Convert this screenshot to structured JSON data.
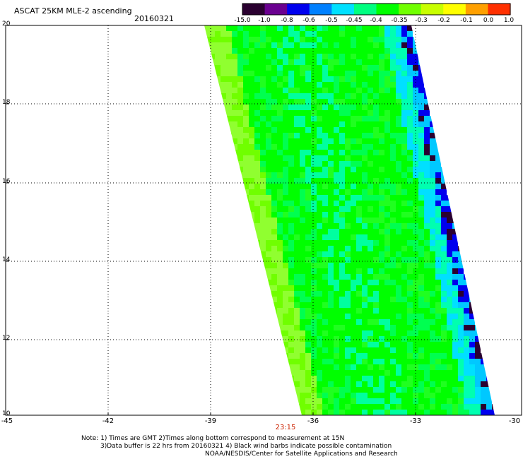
{
  "header": {
    "title": "ASCAT 25KM MLE-2 ascending",
    "date": "20160321"
  },
  "colorbar": {
    "labels": [
      "-15.0",
      "-1.0",
      "-0.8",
      "-0.6",
      "-0.5",
      "-0.45",
      "-0.4",
      "-0.35",
      "-0.3",
      "-0.2",
      "-0.1",
      "0.0",
      "1.0"
    ],
    "colors": [
      "#2a0030",
      "#6a0090",
      "#0000ee",
      "#0080ff",
      "#00e0ff",
      "#00ff80",
      "#00ff00",
      "#70ff00",
      "#c8ff00",
      "#ffff00",
      "#ffa000",
      "#ff3000"
    ]
  },
  "map": {
    "lat_labels": [
      "20",
      "18",
      "16",
      "14",
      "12",
      "10"
    ],
    "lon_labels": [
      "-45",
      "-42",
      "-39",
      "-36",
      "-33",
      "-30"
    ],
    "time_label": "23:15"
  },
  "notes": {
    "line1": "Note: 1) Times are GMT 2)Times along bottom correspond to measurement at 15N",
    "line2": "3)Data buffer is 22 hrs from 20160321 4) Black wind barbs indicate possible contamination",
    "line3": "NOAA/NESDIS/Center for Satellite Applications and Research"
  }
}
